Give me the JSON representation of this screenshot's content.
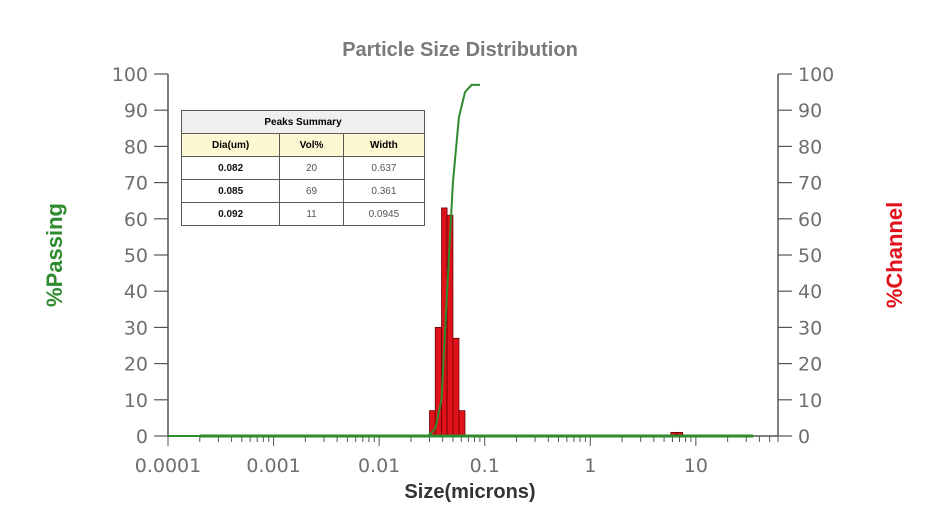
{
  "chart_data": {
    "type": "bar",
    "title": "Particle Size Distribution",
    "xlabel": "Size(microns)",
    "ylabel_left": "%Passing",
    "ylabel_right": "%Channel",
    "x_scale": "log",
    "xlim": [
      0.0001,
      60
    ],
    "ylim": [
      0,
      100
    ],
    "x_tick_labels": [
      "0.0001",
      "0.001",
      "0.01",
      "0.1",
      "1",
      "10"
    ],
    "y_tick_labels": [
      "0",
      "10",
      "20",
      "30",
      "40",
      "50",
      "60",
      "70",
      "80",
      "90",
      "100"
    ],
    "series": [
      {
        "name": "%Channel",
        "axis": "right",
        "color": "#e0111a",
        "type": "bar",
        "bins": [
          {
            "x0": 0.03,
            "x1": 0.034,
            "value": 7
          },
          {
            "x0": 0.034,
            "x1": 0.039,
            "value": 30
          },
          {
            "x0": 0.039,
            "x1": 0.044,
            "value": 63
          },
          {
            "x0": 0.044,
            "x1": 0.05,
            "value": 61
          },
          {
            "x0": 0.05,
            "x1": 0.057,
            "value": 27
          },
          {
            "x0": 0.057,
            "x1": 0.065,
            "value": 7
          },
          {
            "x0": 5.8,
            "x1": 6.6,
            "value": 1
          },
          {
            "x0": 6.6,
            "x1": 7.5,
            "value": 1
          }
        ]
      },
      {
        "name": "%Passing",
        "axis": "left",
        "color": "#2e8b2e",
        "type": "line",
        "points": [
          [
            0.0001,
            0
          ],
          [
            0.029,
            0
          ],
          [
            0.034,
            2
          ],
          [
            0.039,
            10
          ],
          [
            0.044,
            40
          ],
          [
            0.05,
            70
          ],
          [
            0.057,
            88
          ],
          [
            0.065,
            95
          ],
          [
            0.075,
            97
          ],
          [
            0.09,
            97
          ]
        ]
      },
      {
        "name": "%Passing baseline",
        "axis": "left",
        "color": "#2e8b2e",
        "type": "line",
        "points": [
          [
            0.0002,
            0
          ],
          [
            35,
            0
          ]
        ]
      }
    ]
  },
  "peaks_summary": {
    "caption": "Peaks Summary",
    "headers": [
      "Dia(um)",
      "Vol%",
      "Width"
    ],
    "rows": [
      [
        "0.082",
        "20",
        "0.637"
      ],
      [
        "0.085",
        "69",
        "0.361"
      ],
      [
        "0.092",
        "11",
        "0.0945"
      ]
    ]
  }
}
